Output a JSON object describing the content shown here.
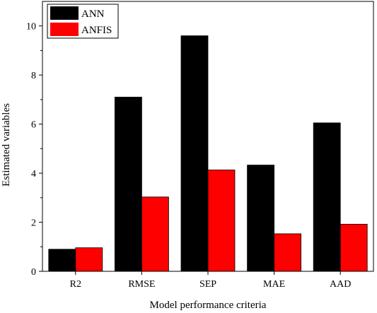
{
  "chart_data": {
    "type": "bar",
    "xlabel": "Model performance criteria",
    "ylabel": "Estimated variables",
    "categories": [
      "R2",
      "RMSE",
      "SEP",
      "MAE",
      "AAD"
    ],
    "ylim": [
      0,
      11
    ],
    "yticks": [
      0,
      2,
      4,
      6,
      8,
      10
    ],
    "series": [
      {
        "name": "ANN",
        "color": "#000000",
        "values": [
          0.9,
          7.1,
          9.6,
          4.33,
          6.05
        ]
      },
      {
        "name": "ANFIS",
        "color": "#ff0000",
        "values": [
          0.96,
          3.03,
          4.13,
          1.53,
          1.92
        ]
      }
    ],
    "legend_position": "top-left",
    "grid": false
  }
}
